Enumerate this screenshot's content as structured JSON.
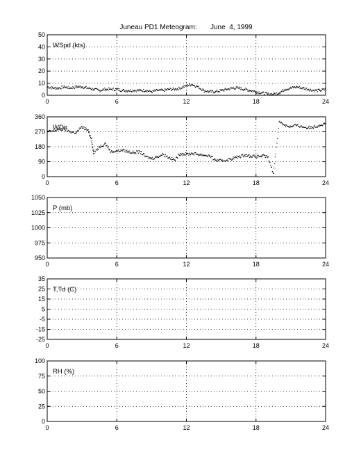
{
  "title": "Juneau PD1 Meteogram:       June  4, 1999",
  "chart_data": [
    {
      "type": "scatter",
      "label": "WSpd (kts)",
      "xlim": [
        0,
        24
      ],
      "ylim": [
        0,
        50
      ],
      "xticks": [
        0,
        6,
        12,
        18,
        24
      ],
      "yticks": [
        0,
        10,
        20,
        30,
        40,
        50
      ],
      "grid": true,
      "x": [
        0,
        0.5,
        1,
        1.5,
        2,
        2.5,
        3,
        3.5,
        4,
        4.5,
        5,
        5.5,
        6,
        6.5,
        7,
        7.5,
        8,
        8.5,
        9,
        9.5,
        10,
        10.5,
        11,
        11.5,
        12,
        12.5,
        13,
        13.5,
        14,
        14.5,
        15,
        15.5,
        16,
        16.5,
        17,
        17.5,
        18,
        18.5,
        19,
        19.5,
        20,
        20.5,
        21,
        21.5,
        22,
        22.5,
        23,
        23.5,
        24
      ],
      "y": [
        7,
        6,
        6,
        7,
        6,
        7,
        7,
        6,
        5,
        4,
        5,
        5,
        5,
        4,
        4,
        4,
        4,
        4,
        3,
        4,
        4,
        5,
        5,
        6,
        8,
        9,
        7,
        4,
        3,
        3,
        4,
        5,
        6,
        6,
        5,
        4,
        3,
        2,
        1,
        1,
        2,
        5,
        6,
        7,
        6,
        5,
        4,
        4,
        5
      ]
    },
    {
      "type": "scatter",
      "label": "WDir",
      "xlim": [
        0,
        24
      ],
      "ylim": [
        0,
        360
      ],
      "xticks": [
        0,
        6,
        12,
        18,
        24
      ],
      "yticks": [
        0,
        90,
        180,
        270,
        360
      ],
      "grid": true,
      "x": [
        0,
        0.5,
        1,
        1.5,
        2,
        2.5,
        3,
        3.5,
        3.8,
        4,
        4.5,
        5,
        5.5,
        6,
        6.5,
        7,
        7.5,
        8,
        8.5,
        9,
        9.5,
        10,
        10.5,
        11,
        11.5,
        12,
        12.5,
        13,
        13.5,
        14,
        14.5,
        15,
        15.5,
        16,
        16.5,
        17,
        17.5,
        18,
        18.5,
        19,
        19.5,
        20,
        20.5,
        21,
        21.5,
        22,
        22.5,
        23,
        23.5,
        24
      ],
      "y": [
        270,
        275,
        285,
        285,
        270,
        265,
        300,
        280,
        230,
        140,
        180,
        200,
        150,
        155,
        160,
        150,
        145,
        150,
        120,
        110,
        120,
        135,
        115,
        100,
        140,
        135,
        140,
        135,
        130,
        125,
        100,
        95,
        100,
        110,
        120,
        130,
        125,
        120,
        125,
        120,
        20,
        330,
        310,
        300,
        310,
        300,
        295,
        300,
        310,
        320
      ]
    },
    {
      "type": "line",
      "label": "P (mb)",
      "xlim": [
        0,
        24
      ],
      "ylim": [
        950,
        1050
      ],
      "xticks": [
        0,
        6,
        12,
        18,
        24
      ],
      "yticks": [
        950,
        975,
        1000,
        1025,
        1050
      ],
      "grid": true,
      "x": [],
      "y": []
    },
    {
      "type": "line",
      "label": "T,Td (C)",
      "xlim": [
        0,
        24
      ],
      "ylim": [
        -25,
        35
      ],
      "xticks": [
        0,
        6,
        12,
        18,
        24
      ],
      "yticks": [
        -25,
        -15,
        -5,
        5,
        15,
        25,
        35
      ],
      "grid": true,
      "x": [],
      "y": []
    },
    {
      "type": "line",
      "label": "RH (%)",
      "xlim": [
        0,
        24
      ],
      "ylim": [
        0,
        100
      ],
      "xticks": [
        0,
        6,
        12,
        18,
        24
      ],
      "yticks": [
        0,
        25,
        50,
        75,
        100
      ],
      "grid": true,
      "x": [],
      "y": []
    }
  ]
}
